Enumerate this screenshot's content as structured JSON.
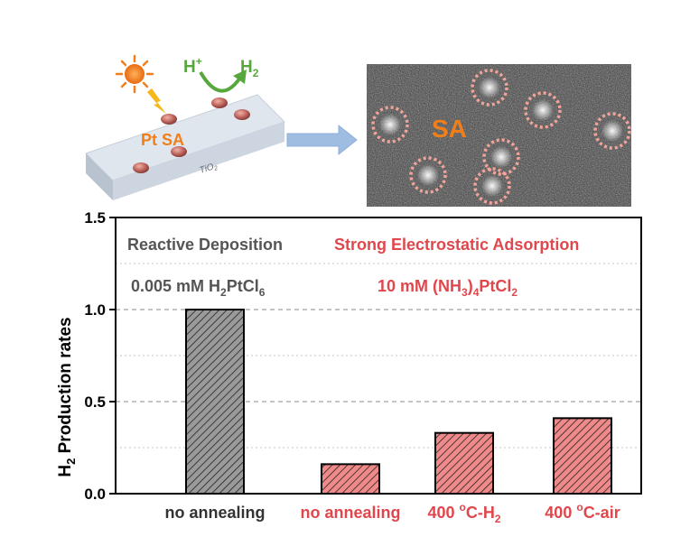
{
  "illustration": {
    "label_pt": "Pt SA",
    "label_support": "TiO",
    "label_support_sub": "2",
    "proton": "H",
    "proton_sup": "+",
    "hydrogen": "H",
    "hydrogen_sub": "2",
    "micrograph_label": "SA",
    "colors": {
      "sun": "#f07f1a",
      "bolt": "#f5b71a",
      "arrow_green": "#57a83c",
      "pt_label": "#f07f1a",
      "block_arrow": "#9fbde0"
    }
  },
  "chart_data": {
    "type": "bar",
    "categories": [
      "no annealing",
      "no annealing",
      "400 °C-H2",
      "400 °C-air"
    ],
    "values": [
      1.0,
      0.16,
      0.33,
      0.41
    ],
    "ylim": [
      0,
      1.5
    ],
    "yticks": [
      "0.0",
      "0.5",
      "1.0",
      "1.5"
    ],
    "ylabel": {
      "main": "H",
      "sub": "2",
      "rest": " Production rates"
    },
    "gridlines": [
      0.25,
      0.5,
      0.75,
      1.0,
      1.25
    ],
    "tick_labels": [
      {
        "main": "no annealing",
        "sup": "",
        "mid": "",
        "sub": "",
        "color": "#333333"
      },
      {
        "main": "no annealing",
        "sup": "",
        "mid": "",
        "sub": "",
        "color": "#e0474c"
      },
      {
        "main": "400 ",
        "sup": "o",
        "mid": "C-H",
        "sub": "2",
        "color": "#e0474c"
      },
      {
        "main": "400 ",
        "sup": "o",
        "mid": "C-air",
        "sub": "",
        "color": "#e0474c"
      }
    ],
    "groups": [
      {
        "name": "Reactive Deposition",
        "precursor_a": "0.005 mM H",
        "precursor_b": "2",
        "precursor_c": "PtCl",
        "precursor_d": "6",
        "color": "#555555"
      },
      {
        "name": "Strong Electrostatic Adsorption",
        "precursor_a": "10 mM (NH",
        "precursor_b": "3",
        "precursor_c": ")",
        "precursor_d": "4",
        "precursor_e": "PtCl",
        "precursor_f": "2",
        "color": "#e0474c"
      }
    ],
    "bar_colors": [
      "#9a9a9a",
      "#f08a8a",
      "#f08a8a",
      "#f08a8a"
    ]
  }
}
